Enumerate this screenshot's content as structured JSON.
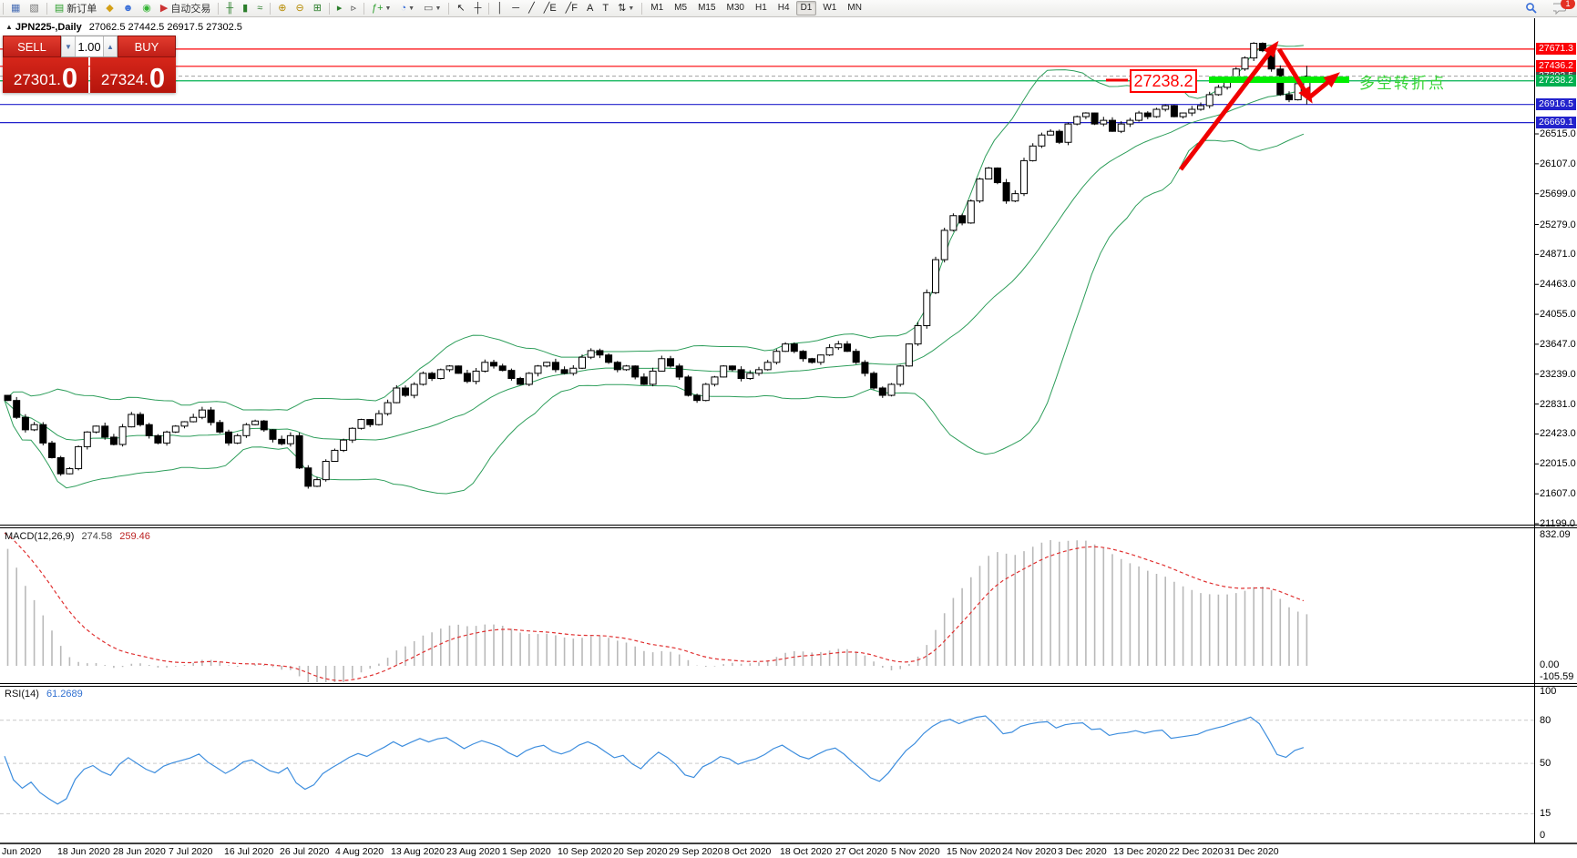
{
  "toolbar": {
    "groups": [
      [
        {
          "name": "chart-window-icon",
          "glyph": "▦",
          "color": "#4a6fb5"
        },
        {
          "name": "profiles-icon",
          "glyph": "▧",
          "color": "#777777"
        }
      ],
      [
        {
          "name": "new-order-button",
          "glyph": "▤",
          "color": "#2a9d2a",
          "label": "新订单"
        },
        {
          "name": "market-watch-icon",
          "glyph": "◆",
          "color": "#d4a017"
        },
        {
          "name": "accounts-icon",
          "glyph": "☻",
          "color": "#3a6fd8"
        },
        {
          "name": "mql-community-icon",
          "glyph": "◉",
          "color": "#35b535"
        },
        {
          "name": "autotrading-button",
          "glyph": "▶",
          "color": "#cc3333",
          "label": "自动交易"
        }
      ],
      [
        {
          "name": "bar-chart-button",
          "glyph": "╫",
          "color": "#2a7d2a"
        },
        {
          "name": "candlestick-chart-button",
          "glyph": "▮",
          "color": "#2a7d2a"
        },
        {
          "name": "line-chart-button",
          "glyph": "≈",
          "color": "#2a7d2a"
        }
      ],
      [
        {
          "name": "zoom-in-button",
          "glyph": "⊕",
          "color": "#b58a00"
        },
        {
          "name": "zoom-out-button",
          "glyph": "⊖",
          "color": "#b58a00"
        },
        {
          "name": "tile-windows-button",
          "glyph": "⊞",
          "color": "#2a7d2a"
        }
      ],
      [
        {
          "name": "strategy-tester-button",
          "glyph": "▸",
          "color": "#2a7d2a"
        },
        {
          "name": "chart-shift-button",
          "glyph": "▹",
          "color": "#333333"
        }
      ],
      [
        {
          "name": "add-indicator-button",
          "glyph": "ƒ+",
          "color": "#2a9d2a",
          "caret": true
        },
        {
          "name": "periods-button",
          "glyph": "◔",
          "color": "#3a6fd8",
          "caret": true
        },
        {
          "name": "template-button",
          "glyph": "▭",
          "color": "#555555",
          "caret": true
        }
      ],
      [
        {
          "name": "cursor-button",
          "glyph": "↖",
          "color": "#222222"
        },
        {
          "name": "crosshair-button",
          "glyph": "┼",
          "color": "#222222"
        }
      ],
      [
        {
          "name": "vertical-line-button",
          "glyph": "│",
          "color": "#222222"
        },
        {
          "name": "horizontal-line-button",
          "glyph": "─",
          "color": "#222222"
        },
        {
          "name": "trendline-button",
          "glyph": "╱",
          "color": "#222222"
        },
        {
          "name": "channel-button",
          "glyph": "╱E",
          "color": "#222222"
        },
        {
          "name": "fibonacci-button",
          "glyph": "╱F",
          "color": "#222222"
        },
        {
          "name": "text-button",
          "glyph": "A",
          "color": "#222222"
        },
        {
          "name": "label-button",
          "glyph": "T",
          "color": "#222222"
        },
        {
          "name": "arrows-button",
          "glyph": "⇅",
          "color": "#222222",
          "caret": true
        }
      ]
    ],
    "timeframes": [
      "M1",
      "M5",
      "M15",
      "M30",
      "H1",
      "H4",
      "D1",
      "W1",
      "MN"
    ],
    "selected_timeframe": "D1",
    "notification_count": "1"
  },
  "chart": {
    "title_symbol": "JPN225-,Daily",
    "title_ohlc": "27062.5 27442.5 26917.5 27302.5",
    "price_ticks": [
      "26515.0",
      "26107.0",
      "25699.0",
      "25279.0",
      "24871.0",
      "24463.0",
      "24055.0",
      "23647.0",
      "23239.0",
      "22831.0",
      "22423.0",
      "22015.0",
      "21607.0",
      "21199.0"
    ],
    "hlines": [
      {
        "price": 27671.3,
        "label": "27671.3",
        "color": "#fb0207"
      },
      {
        "price": 27436.2,
        "label": "27436.2",
        "color": "#fb0207"
      },
      {
        "price": 27238.2,
        "label": "27238.2",
        "color": "#00b050"
      },
      {
        "price": 26916.5,
        "label": "26916.5",
        "color": "#2222cc"
      },
      {
        "price": 26669.1,
        "label": "26669.1",
        "color": "#2222cc"
      }
    ],
    "current_price": {
      "price": 27302.5,
      "label": "27302.5",
      "line_color": "#a0a0a0",
      "badge_color": "#4d4d4d"
    },
    "date_labels": [
      "Jun 2020",
      "18 Jun 2020",
      "28 Jun 2020",
      "7 Jul 2020",
      "16 Jul 2020",
      "26 Jul 2020",
      "4 Aug 2020",
      "13 Aug 2020",
      "23 Aug 2020",
      "1 Sep 2020",
      "10 Sep 2020",
      "20 Sep 2020",
      "29 Sep 2020",
      "8 Oct 2020",
      "18 Oct 2020",
      "27 Oct 2020",
      "5 Nov 2020",
      "15 Nov 2020",
      "24 Nov 2020",
      "3 Dec 2020",
      "13 Dec 2020",
      "22 Dec 2020",
      "31 Dec 2020"
    ]
  },
  "trade": {
    "sell_label": "SELL",
    "buy_label": "BUY",
    "volume": "1.00",
    "sell_price": "27301.",
    "sell_price_big": "0",
    "buy_price": "27324.",
    "buy_price_big": "0"
  },
  "macd": {
    "title": "MACD(12,26,9)",
    "value_main": "274.58",
    "value_signal": "259.46",
    "scale": [
      "832.09",
      "0.00",
      "-105.59"
    ]
  },
  "rsi": {
    "title": "RSI(14)",
    "value": "61.2689",
    "levels": [
      "100",
      "80",
      "50",
      "15",
      "0"
    ],
    "dashed_levels": [
      80,
      50,
      15
    ]
  },
  "annotations": {
    "price_label": "27238.2",
    "turning_point_text": "多空转折点",
    "highlight_color": "#00ee00",
    "arrow_color": "#f00000"
  },
  "chart_data": {
    "type": "candlestick",
    "symbol": "JPN225-",
    "timeframe": "Daily",
    "current_bar": {
      "open": 27062.5,
      "high": 27442.5,
      "low": 26917.5,
      "close": 27302.5
    },
    "x_range": [
      "Jun 2020",
      "31 Dec 2020"
    ],
    "y_range_visible": [
      21150,
      27990
    ],
    "closes": [
      22880,
      22650,
      22480,
      22550,
      22300,
      22100,
      21880,
      21950,
      22250,
      22450,
      22530,
      22380,
      22280,
      22520,
      22690,
      22550,
      22400,
      22300,
      22450,
      22530,
      22590,
      22650,
      22750,
      22580,
      22450,
      22300,
      22400,
      22550,
      22600,
      22480,
      22350,
      22290,
      22400,
      21960,
      21710,
      21800,
      22050,
      22200,
      22340,
      22500,
      22620,
      22550,
      22700,
      22850,
      23050,
      22950,
      23100,
      23250,
      23180,
      23300,
      23350,
      23250,
      23140,
      23280,
      23400,
      23350,
      23290,
      23180,
      23100,
      23250,
      23350,
      23400,
      23300,
      23250,
      23320,
      23470,
      23560,
      23500,
      23400,
      23300,
      23350,
      23200,
      23100,
      23280,
      23450,
      23350,
      23200,
      22950,
      22880,
      23100,
      23200,
      23350,
      23300,
      23180,
      23250,
      23300,
      23400,
      23550,
      23650,
      23550,
      23450,
      23400,
      23500,
      23600,
      23650,
      23550,
      23400,
      23250,
      23050,
      22950,
      23100,
      23350,
      23650,
      23900,
      24350,
      24800,
      25200,
      25400,
      25300,
      25600,
      25900,
      26050,
      25850,
      25600,
      25700,
      26150,
      26350,
      26500,
      26550,
      26400,
      26650,
      26750,
      26800,
      26650,
      26700,
      26550,
      26650,
      26700,
      26800,
      26750,
      26850,
      26900,
      26750,
      26800,
      26850,
      26900,
      27050,
      27150,
      27250,
      27400,
      27550,
      27750,
      27650,
      27400,
      27050,
      26980,
      27200,
      27302.5
    ],
    "overlays": {
      "bollinger_bands": {
        "period": 20,
        "deviation": 2,
        "color": "#2e9e5b"
      },
      "horizontal_lines": [
        {
          "price": 27671.3,
          "color": "red"
        },
        {
          "price": 27436.2,
          "color": "red"
        },
        {
          "price": 27238.2,
          "color": "green"
        },
        {
          "price": 26916.5,
          "color": "blue"
        },
        {
          "price": 26669.1,
          "color": "blue"
        }
      ],
      "highlight_level": 27238.2
    },
    "indicator_panes": [
      {
        "name": "MACD",
        "params": "12,26,9",
        "values_shown": [
          274.58,
          259.46
        ],
        "scale": [
          832.09,
          0.0,
          -105.59
        ]
      },
      {
        "name": "RSI",
        "params": "14",
        "value_shown": 61.2689,
        "levels": [
          100,
          80,
          50,
          15,
          0
        ]
      }
    ]
  }
}
